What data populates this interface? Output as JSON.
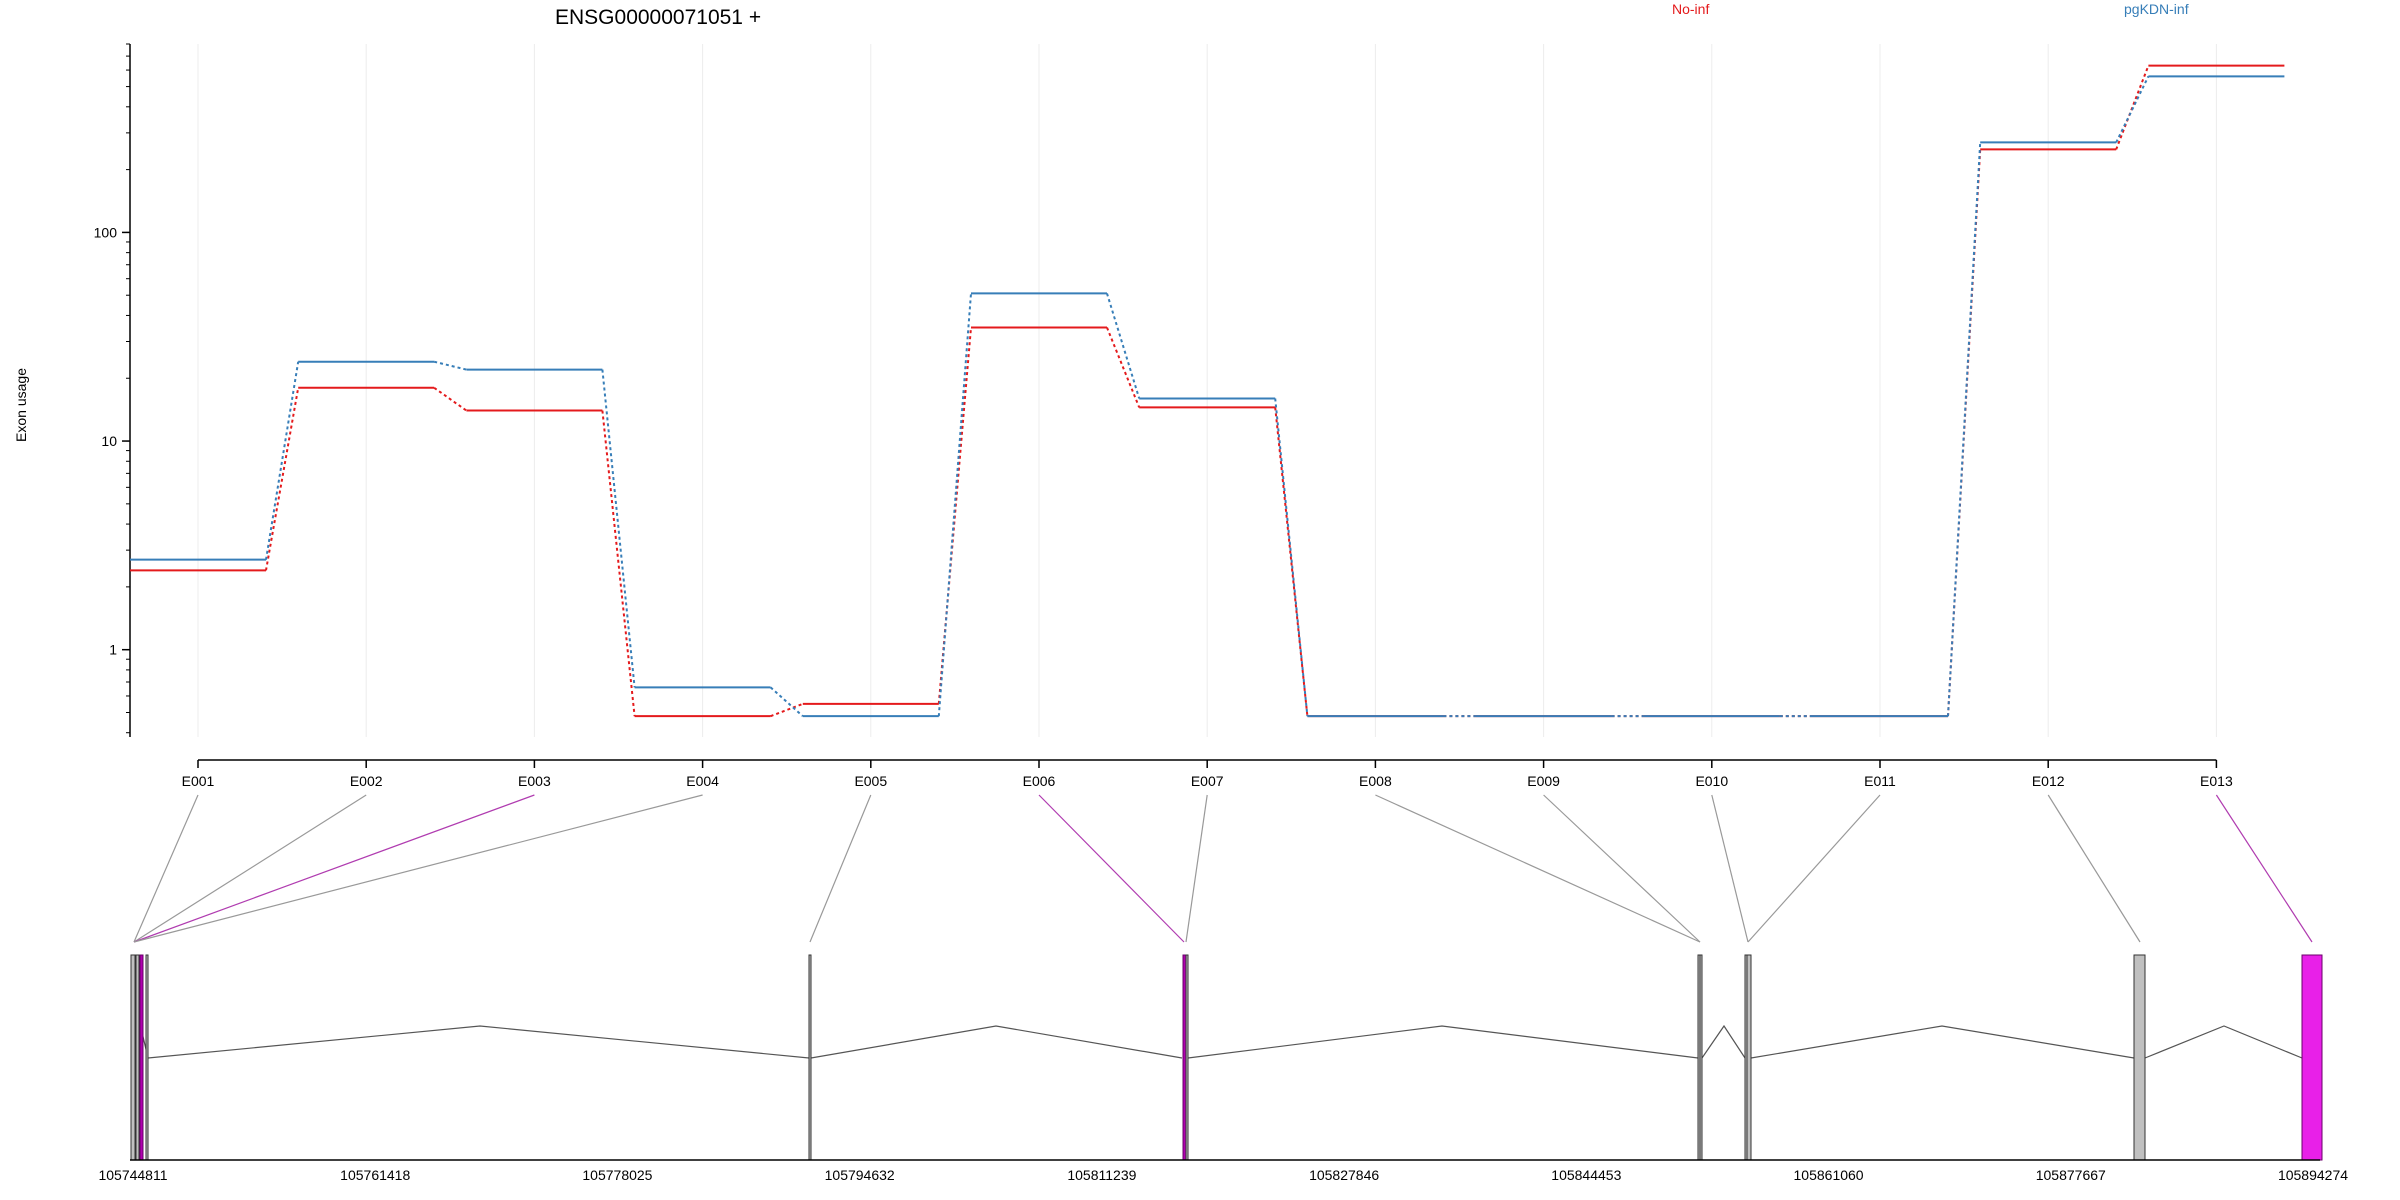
{
  "chart_data": {
    "type": "line",
    "title": "ENSG00000071051 +",
    "ylabel": "Exon usage",
    "xlabel": "",
    "y_scale": "log",
    "ylim": [
      0.39,
      800
    ],
    "y_ticks": [
      1,
      10,
      100
    ],
    "y_tick_labels": [
      "1",
      "10",
      "100"
    ],
    "grid": "vertical",
    "legend": {
      "placement": "top",
      "entries": [
        "No-inf",
        "pgKDN-inf"
      ]
    },
    "categories": [
      "E001",
      "E002",
      "E003",
      "E004",
      "E005",
      "E006",
      "E007",
      "E008",
      "E009",
      "E010",
      "E011",
      "E012",
      "E013"
    ],
    "series": [
      {
        "name": "No-inf",
        "color": "#e41a1c",
        "values": [
          2.4,
          18,
          14,
          0.48,
          0.55,
          35,
          14.5,
          0.48,
          0.48,
          0.48,
          0.48,
          250,
          630
        ]
      },
      {
        "name": "pgKDN-inf",
        "color": "#377eb8",
        "values": [
          2.7,
          24,
          22,
          0.66,
          0.48,
          51,
          16,
          0.48,
          0.48,
          0.48,
          0.48,
          270,
          560
        ]
      }
    ],
    "gene_model": {
      "genomic_range": [
        105744811,
        105894274
      ],
      "axis_tick_labels": [
        "105744811",
        "105761418",
        "105778025",
        "105794632",
        "105811239",
        "105827846",
        "105844453",
        "105861060",
        "105877667",
        "105894274"
      ],
      "exons": [
        {
          "id": "E001",
          "fill": "#c0c0c0",
          "highlight": false
        },
        {
          "id": "E002",
          "fill": "#c0c0c0",
          "highlight": false
        },
        {
          "id": "E003",
          "fill": "#b000b0",
          "highlight": true
        },
        {
          "id": "E004",
          "fill": "#c0c0c0",
          "highlight": false
        },
        {
          "id": "E005",
          "fill": "#c0c0c0",
          "highlight": false
        },
        {
          "id": "E006",
          "fill": "#b000b0",
          "highlight": true
        },
        {
          "id": "E007",
          "fill": "#c0c0c0",
          "highlight": false
        },
        {
          "id": "E008",
          "fill": "#c0c0c0",
          "highlight": false
        },
        {
          "id": "E009",
          "fill": "#c0c0c0",
          "highlight": false
        },
        {
          "id": "E010",
          "fill": "#c0c0c0",
          "highlight": false
        },
        {
          "id": "E011",
          "fill": "#c0c0c0",
          "highlight": false
        },
        {
          "id": "E012",
          "fill": "#c0c0c0",
          "highlight": false
        },
        {
          "id": "E013",
          "fill": "#e820e8",
          "highlight": true
        }
      ]
    }
  }
}
